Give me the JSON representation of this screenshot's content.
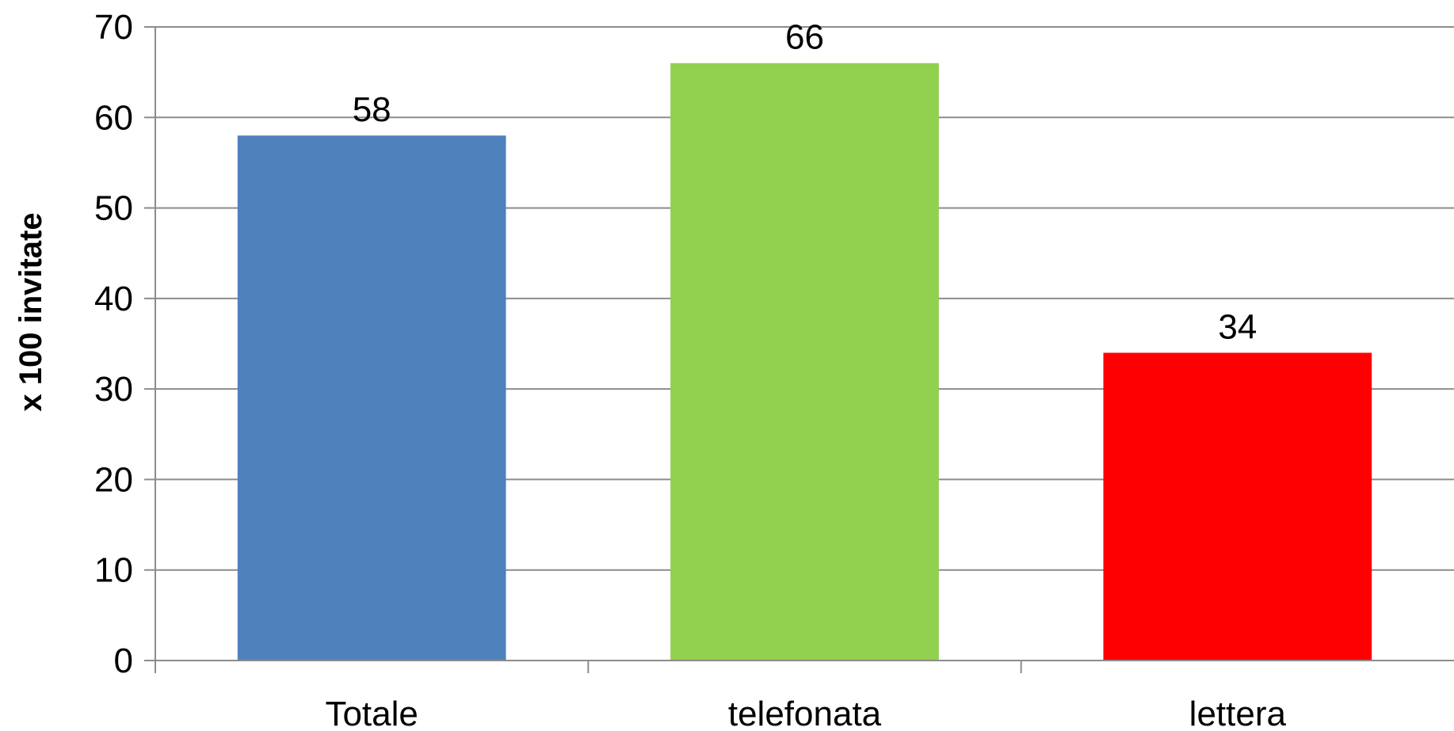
{
  "chart_data": {
    "type": "bar",
    "categories": [
      "Totale",
      "telefonata",
      "lettera"
    ],
    "values": [
      58,
      66,
      34
    ],
    "colors": [
      "#4f81bd",
      "#92d050",
      "#ff0000"
    ],
    "ylabel": "x 100 invitate",
    "xlabel": "",
    "title": "",
    "ylim": [
      0,
      70
    ],
    "yticks": [
      0,
      10,
      20,
      30,
      40,
      50,
      60,
      70
    ],
    "grid": true,
    "grid_color": "#8c8c8c",
    "data_labels": true,
    "legend": "none"
  }
}
